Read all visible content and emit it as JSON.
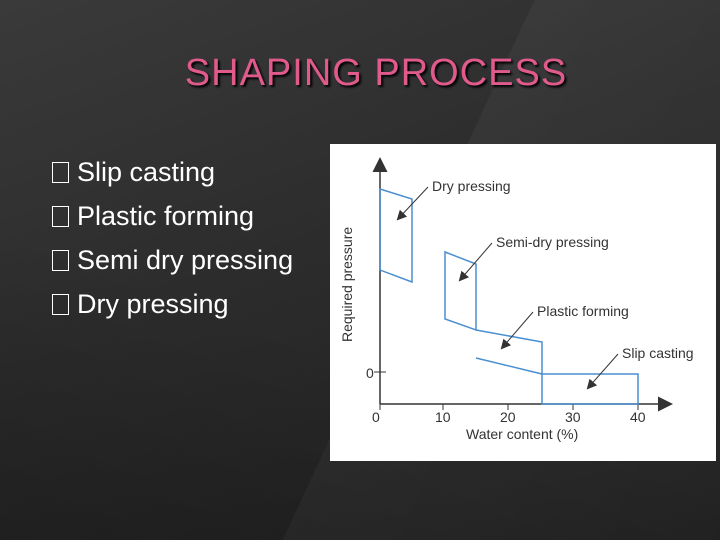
{
  "slide": {
    "title": "SHAPING PROCESS",
    "bullets": [
      {
        "text": "Slip casting"
      },
      {
        "text": "Plastic forming"
      },
      {
        "text": "Semi dry pressing"
      },
      {
        "text": "Dry pressing"
      }
    ]
  },
  "figure": {
    "y_axis_label": "Required pressure",
    "x_axis_label": "Water content (%)",
    "x_ticks": [
      "0",
      "10",
      "20",
      "30",
      "40"
    ],
    "y_tick": "0",
    "labels": {
      "dry": "Dry pressing",
      "semi": "Semi-dry pressing",
      "plastic": "Plastic forming",
      "slip": "Slip casting"
    },
    "line_color": "#4a8fd0"
  }
}
